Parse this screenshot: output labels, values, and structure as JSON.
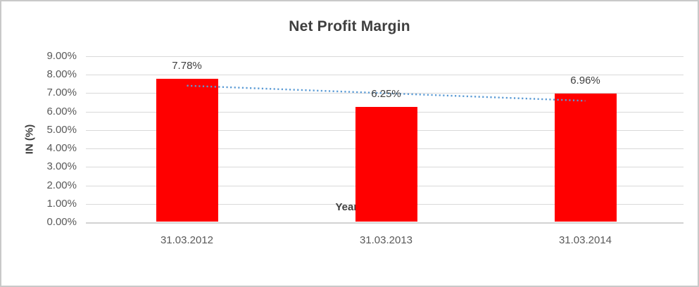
{
  "chart_data": {
    "type": "bar",
    "title": "Net Profit Margin",
    "xlabel": "Years",
    "ylabel": "IN (%)",
    "categories": [
      "31.03.2012",
      "31.03.2013",
      "31.03.2014"
    ],
    "values": [
      7.78,
      6.25,
      6.96
    ],
    "data_labels": [
      "7.78%",
      "6.25%",
      "6.96%"
    ],
    "ylim": [
      0,
      9
    ],
    "ytick_labels": [
      "0.00%",
      "1.00%",
      "2.00%",
      "3.00%",
      "4.00%",
      "5.00%",
      "6.00%",
      "7.00%",
      "8.00%",
      "9.00%"
    ],
    "grid": "horizontal",
    "legend": "none",
    "bar_color": "#ff0000",
    "trendline": {
      "type": "linear",
      "style": "dotted",
      "color": "#5b9bd5"
    },
    "colors": {
      "gridline": "#d9d9d9",
      "axis_line": "#d2d2d2",
      "tick_text": "#595959",
      "title_text": "#3f3f3f",
      "frame_border": "#c9c9c9",
      "background": "#ffffff"
    }
  }
}
